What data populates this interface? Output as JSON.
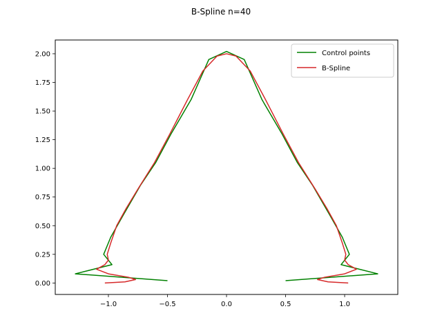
{
  "chart_data": {
    "type": "line",
    "title": "B-Spline n=40",
    "xlabel": "",
    "ylabel": "",
    "xlim": [
      -1.45,
      1.45
    ],
    "ylim": [
      -0.1,
      2.12
    ],
    "grid": false,
    "legend_position": "top-right",
    "x_ticks": [
      -1.0,
      -0.5,
      0.0,
      0.5,
      1.0
    ],
    "x_tick_labels": [
      "−1.0",
      "−0.5",
      "0.0",
      "0.5",
      "1.0"
    ],
    "y_ticks": [
      0.0,
      0.25,
      0.5,
      0.75,
      1.0,
      1.25,
      1.5,
      1.75,
      2.0
    ],
    "y_tick_labels": [
      "0.00",
      "0.25",
      "0.50",
      "0.75",
      "1.00",
      "1.25",
      "1.50",
      "1.75",
      "2.00"
    ],
    "series": [
      {
        "name": "Control points",
        "color": "#008000",
        "points": [
          [
            -0.5,
            0.02
          ],
          [
            -1.28,
            0.08
          ],
          [
            -0.97,
            0.16
          ],
          [
            -1.04,
            0.25
          ],
          [
            -0.98,
            0.4
          ],
          [
            -0.87,
            0.6
          ],
          [
            -0.73,
            0.85
          ],
          [
            -0.6,
            1.05
          ],
          [
            -0.47,
            1.3
          ],
          [
            -0.3,
            1.6
          ],
          [
            -0.15,
            1.95
          ],
          [
            0.0,
            2.02
          ],
          [
            0.15,
            1.95
          ],
          [
            0.3,
            1.6
          ],
          [
            0.47,
            1.3
          ],
          [
            0.6,
            1.05
          ],
          [
            0.73,
            0.85
          ],
          [
            0.87,
            0.6
          ],
          [
            0.98,
            0.4
          ],
          [
            1.04,
            0.25
          ],
          [
            0.97,
            0.16
          ],
          [
            1.28,
            0.08
          ],
          [
            0.5,
            0.02
          ]
        ]
      },
      {
        "name": "B-Spline",
        "color": "#d62728",
        "points": [
          [
            -1.03,
            0.0
          ],
          [
            -0.86,
            0.01
          ],
          [
            -0.77,
            0.03
          ],
          [
            -0.83,
            0.05
          ],
          [
            -1.0,
            0.08
          ],
          [
            -1.1,
            0.12
          ],
          [
            -1.03,
            0.16
          ],
          [
            -1.0,
            0.2
          ],
          [
            -1.01,
            0.25
          ],
          [
            -0.98,
            0.35
          ],
          [
            -0.93,
            0.5
          ],
          [
            -0.85,
            0.65
          ],
          [
            -0.75,
            0.82
          ],
          [
            -0.61,
            1.05
          ],
          [
            -0.48,
            1.3
          ],
          [
            -0.33,
            1.6
          ],
          [
            -0.2,
            1.85
          ],
          [
            -0.08,
            1.98
          ],
          [
            0.0,
            2.0
          ],
          [
            0.08,
            1.98
          ],
          [
            0.2,
            1.85
          ],
          [
            0.33,
            1.6
          ],
          [
            0.48,
            1.3
          ],
          [
            0.61,
            1.05
          ],
          [
            0.75,
            0.82
          ],
          [
            0.85,
            0.65
          ],
          [
            0.93,
            0.5
          ],
          [
            0.98,
            0.35
          ],
          [
            1.01,
            0.25
          ],
          [
            1.0,
            0.2
          ],
          [
            1.03,
            0.16
          ],
          [
            1.1,
            0.12
          ],
          [
            1.0,
            0.08
          ],
          [
            0.83,
            0.05
          ],
          [
            0.77,
            0.03
          ],
          [
            0.86,
            0.01
          ],
          [
            1.03,
            0.0
          ]
        ]
      }
    ]
  }
}
